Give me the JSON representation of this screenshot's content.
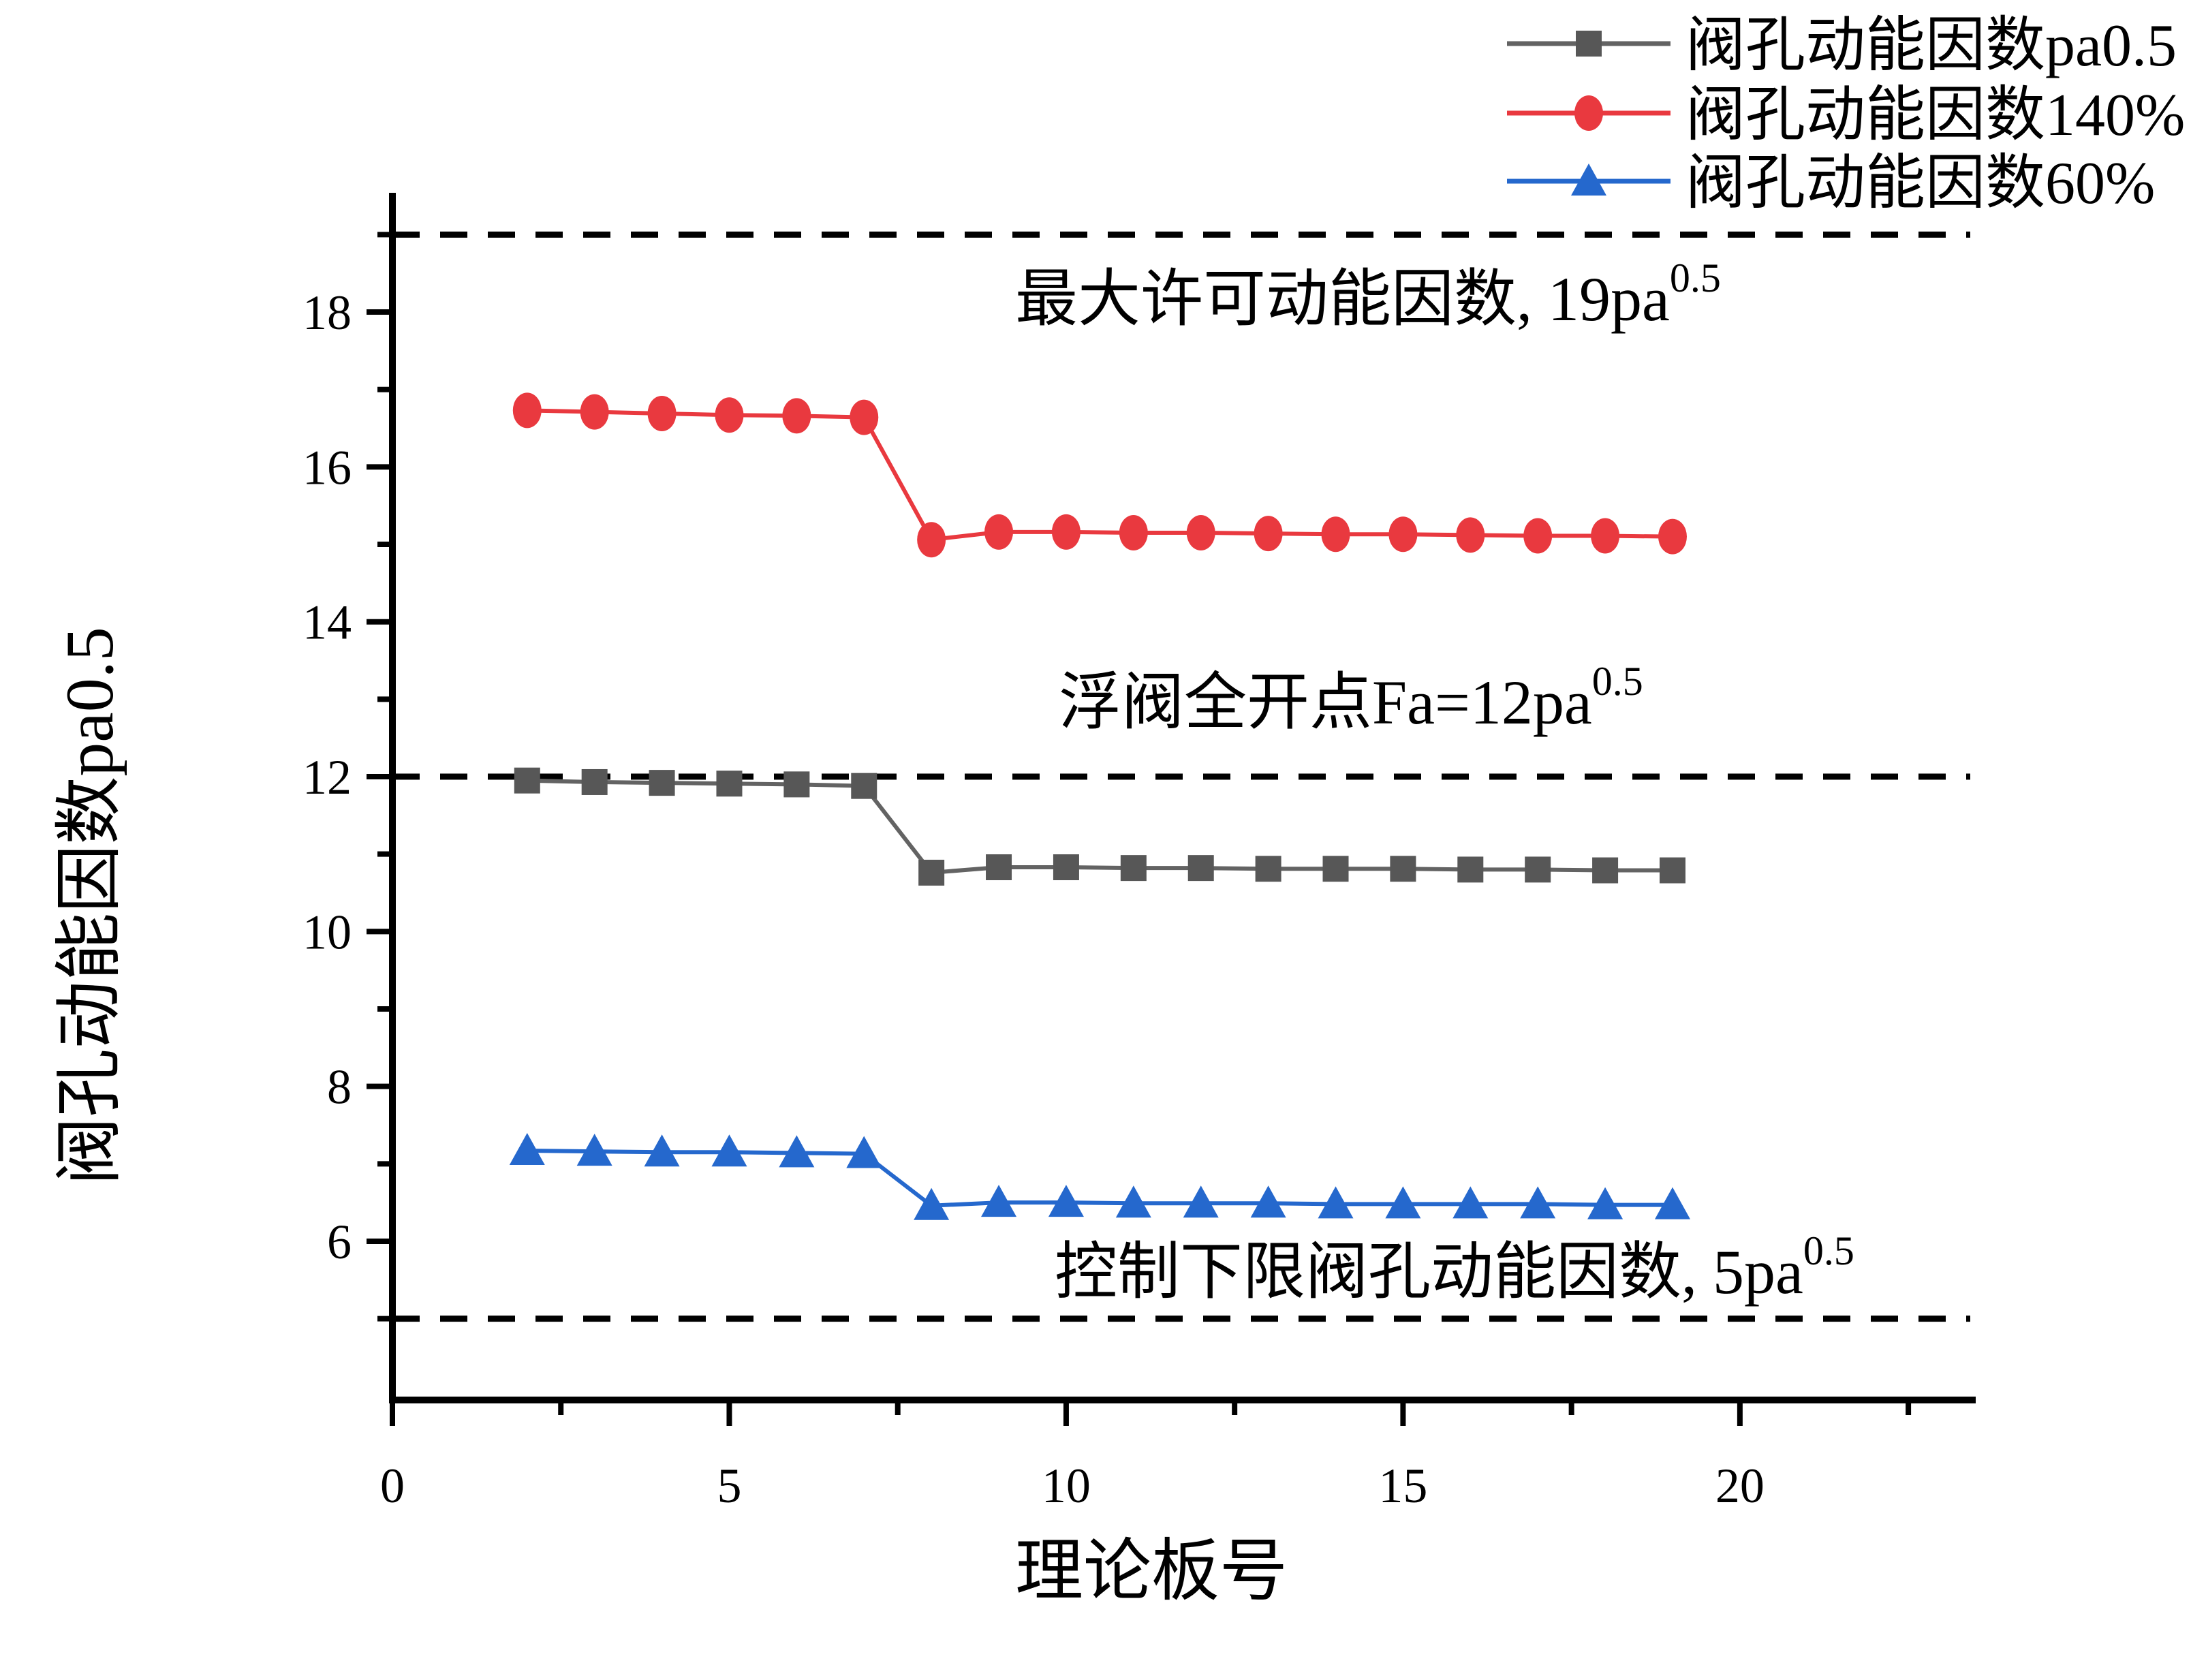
{
  "chart_data": {
    "type": "line",
    "title": "",
    "xlabel": "理论板号",
    "ylabel": "阀孔动能因数pa0.5",
    "x": [
      2,
      3,
      4,
      5,
      6,
      7,
      8,
      9,
      10,
      11,
      12,
      13,
      14,
      15,
      16,
      17,
      18,
      19
    ],
    "series": [
      {
        "name": "阀孔动能因数pa0.5",
        "marker": "square",
        "color": "#575757",
        "line_color": "#636363",
        "values": [
          11.95,
          11.93,
          11.92,
          11.91,
          11.9,
          11.88,
          10.76,
          10.83,
          10.83,
          10.82,
          10.82,
          10.81,
          10.81,
          10.81,
          10.8,
          10.8,
          10.79,
          10.79
        ]
      },
      {
        "name": "阀孔动能因数140%",
        "marker": "circle",
        "color": "#e9393f",
        "line_color": "#e9393f",
        "values": [
          16.73,
          16.71,
          16.69,
          16.67,
          16.66,
          16.64,
          15.06,
          15.16,
          15.16,
          15.15,
          15.15,
          15.14,
          15.13,
          15.13,
          15.12,
          15.11,
          15.11,
          15.1
        ]
      },
      {
        "name": "阀孔动能因数60%",
        "marker": "triangle",
        "color": "#2568cd",
        "line_color": "#2568cd",
        "values": [
          7.17,
          7.16,
          7.15,
          7.15,
          7.14,
          7.13,
          6.46,
          6.5,
          6.5,
          6.49,
          6.49,
          6.49,
          6.48,
          6.48,
          6.48,
          6.48,
          6.47,
          6.47
        ]
      }
    ],
    "reference_lines": [
      {
        "y": 19,
        "style": "dashed",
        "color": "#000000",
        "label_prefix": "最大许可动能因数, 19pa",
        "label_sup": "0.5"
      },
      {
        "y": 12,
        "style": "dashed",
        "color": "#000000",
        "label_prefix": "浮阀全开点Fa=12pa",
        "label_sup": "0.5"
      },
      {
        "y": 5,
        "style": "dashed",
        "color": "#000000",
        "label_prefix": "控制下限阀孔动能因数, 5pa",
        "label_sup": "0.5"
      }
    ],
    "axes": {
      "xlim": [
        0,
        23.5
      ],
      "ylim": [
        3.95,
        19.54
      ],
      "x_major_ticks": [
        0,
        5,
        10,
        15,
        20
      ],
      "x_tick_labels": [
        "0",
        "5",
        "10",
        "15",
        "20"
      ],
      "x_minor_ticks": [
        2.5,
        7.5,
        12.5,
        17.5,
        22.5
      ],
      "y_major_ticks": [
        6,
        8,
        10,
        12,
        14,
        16,
        18
      ],
      "y_tick_labels": [
        "6",
        "8",
        "10",
        "12",
        "14",
        "16",
        "18"
      ],
      "y_minor_ticks": [
        5,
        7,
        9,
        11,
        13,
        15,
        17,
        19
      ],
      "grid": false,
      "frame": "L-shaped"
    },
    "legend_position": "top-right"
  },
  "colors": {
    "background": "#ffffff",
    "axis": "#000000",
    "series_design": "#575757",
    "series_140": "#e9393f",
    "series_60": "#2568cd"
  }
}
